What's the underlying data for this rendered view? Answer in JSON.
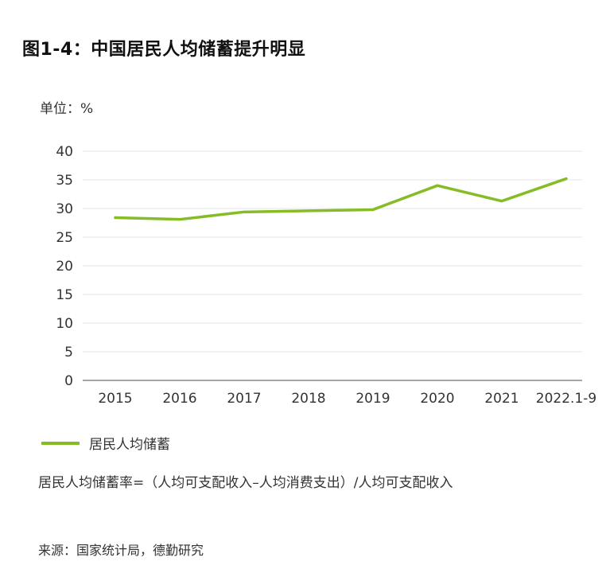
{
  "title": "图1-4：中国居民人均储蓄提升明显",
  "unit_label": "单位：%",
  "formula": "居民人均储蓄率=（人均可支配收入–人均消费支出）/人均可支配收入",
  "source": "来源：国家统计局，德勤研究",
  "colors": {
    "series": "#86BC25",
    "grid": "#e6e6e6",
    "axis": "#888888",
    "text": "#333333"
  },
  "chart_data": {
    "type": "line",
    "title": "图1-4：中国居民人均储蓄提升明显",
    "xlabel": "",
    "ylabel": "单位：%",
    "categories": [
      "2015",
      "2016",
      "2017",
      "2018",
      "2019",
      "2020",
      "2021",
      "2022.1-9"
    ],
    "series": [
      {
        "name": "居民人均储蓄",
        "values": [
          28.4,
          28.1,
          29.4,
          29.6,
          29.8,
          34.0,
          31.3,
          35.2
        ]
      }
    ],
    "yticks": [
      "0",
      "5",
      "10",
      "15",
      "20",
      "25",
      "30",
      "35",
      "40"
    ],
    "ylim": [
      0,
      40
    ],
    "grid": true,
    "legend": "bottom-left"
  }
}
